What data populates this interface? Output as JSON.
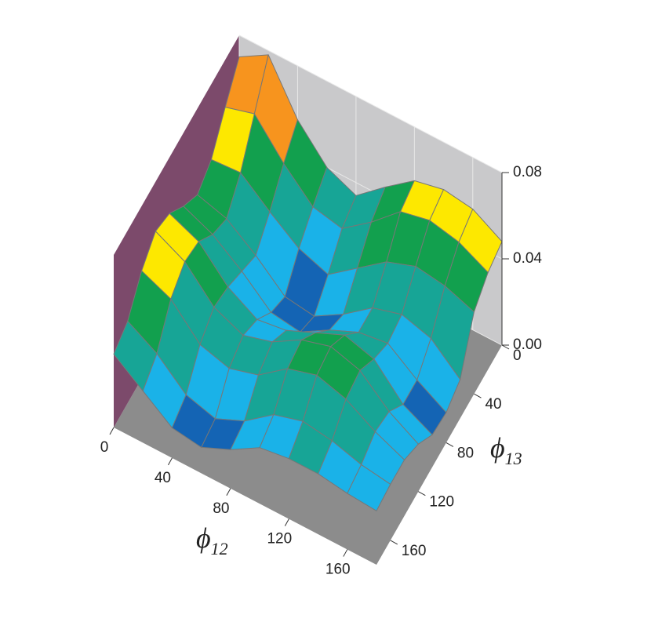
{
  "chart_data": {
    "type": "surface",
    "x_label": {
      "symbol": "ϕ",
      "subscript": "12"
    },
    "y_label": {
      "symbol": "ϕ",
      "subscript": "13"
    },
    "x": [
      0,
      20,
      40,
      60,
      80,
      100,
      120,
      140,
      160,
      180
    ],
    "y": [
      0,
      20,
      40,
      60,
      80,
      100,
      120,
      140,
      160,
      180
    ],
    "z": [
      [
        0.07,
        0.078,
        0.055,
        0.04,
        0.034,
        0.045,
        0.055,
        0.058,
        0.056,
        0.048
      ],
      [
        0.058,
        0.062,
        0.046,
        0.033,
        0.03,
        0.04,
        0.052,
        0.055,
        0.052,
        0.045
      ],
      [
        0.045,
        0.046,
        0.035,
        0.025,
        0.02,
        0.03,
        0.04,
        0.045,
        0.043,
        0.038
      ],
      [
        0.04,
        0.036,
        0.026,
        0.014,
        0.012,
        0.02,
        0.03,
        0.034,
        0.03,
        0.018
      ],
      [
        0.046,
        0.04,
        0.03,
        0.018,
        0.016,
        0.024,
        0.03,
        0.032,
        0.022,
        0.014
      ],
      [
        0.054,
        0.048,
        0.034,
        0.026,
        0.028,
        0.034,
        0.04,
        0.036,
        0.022,
        0.015
      ],
      [
        0.057,
        0.05,
        0.036,
        0.03,
        0.034,
        0.042,
        0.046,
        0.042,
        0.03,
        0.022
      ],
      [
        0.05,
        0.044,
        0.03,
        0.026,
        0.03,
        0.04,
        0.044,
        0.04,
        0.032,
        0.026
      ],
      [
        0.038,
        0.03,
        0.018,
        0.014,
        0.02,
        0.03,
        0.034,
        0.032,
        0.028,
        0.026
      ],
      [
        0.034,
        0.024,
        0.014,
        0.012,
        0.018,
        0.026,
        0.028,
        0.028,
        0.026,
        0.025
      ]
    ],
    "levels": [
      0.02,
      0.03,
      0.04,
      0.05,
      0.06,
      0.07
    ],
    "colors": [
      "#1464b4",
      "#1ab2e8",
      "#17a596",
      "#12a04e",
      "#fde800",
      "#f7941e",
      "#e8231f"
    ],
    "xlim": [
      0,
      180
    ],
    "ylim": [
      0,
      180
    ],
    "zlim": [
      0,
      0.08
    ],
    "xticks": [
      0,
      40,
      80,
      120,
      160
    ],
    "yticks": [
      0,
      40,
      80,
      120,
      160
    ],
    "zticks": [
      {
        "value": 0,
        "label": "0.00"
      },
      0.04,
      0.08
    ]
  }
}
